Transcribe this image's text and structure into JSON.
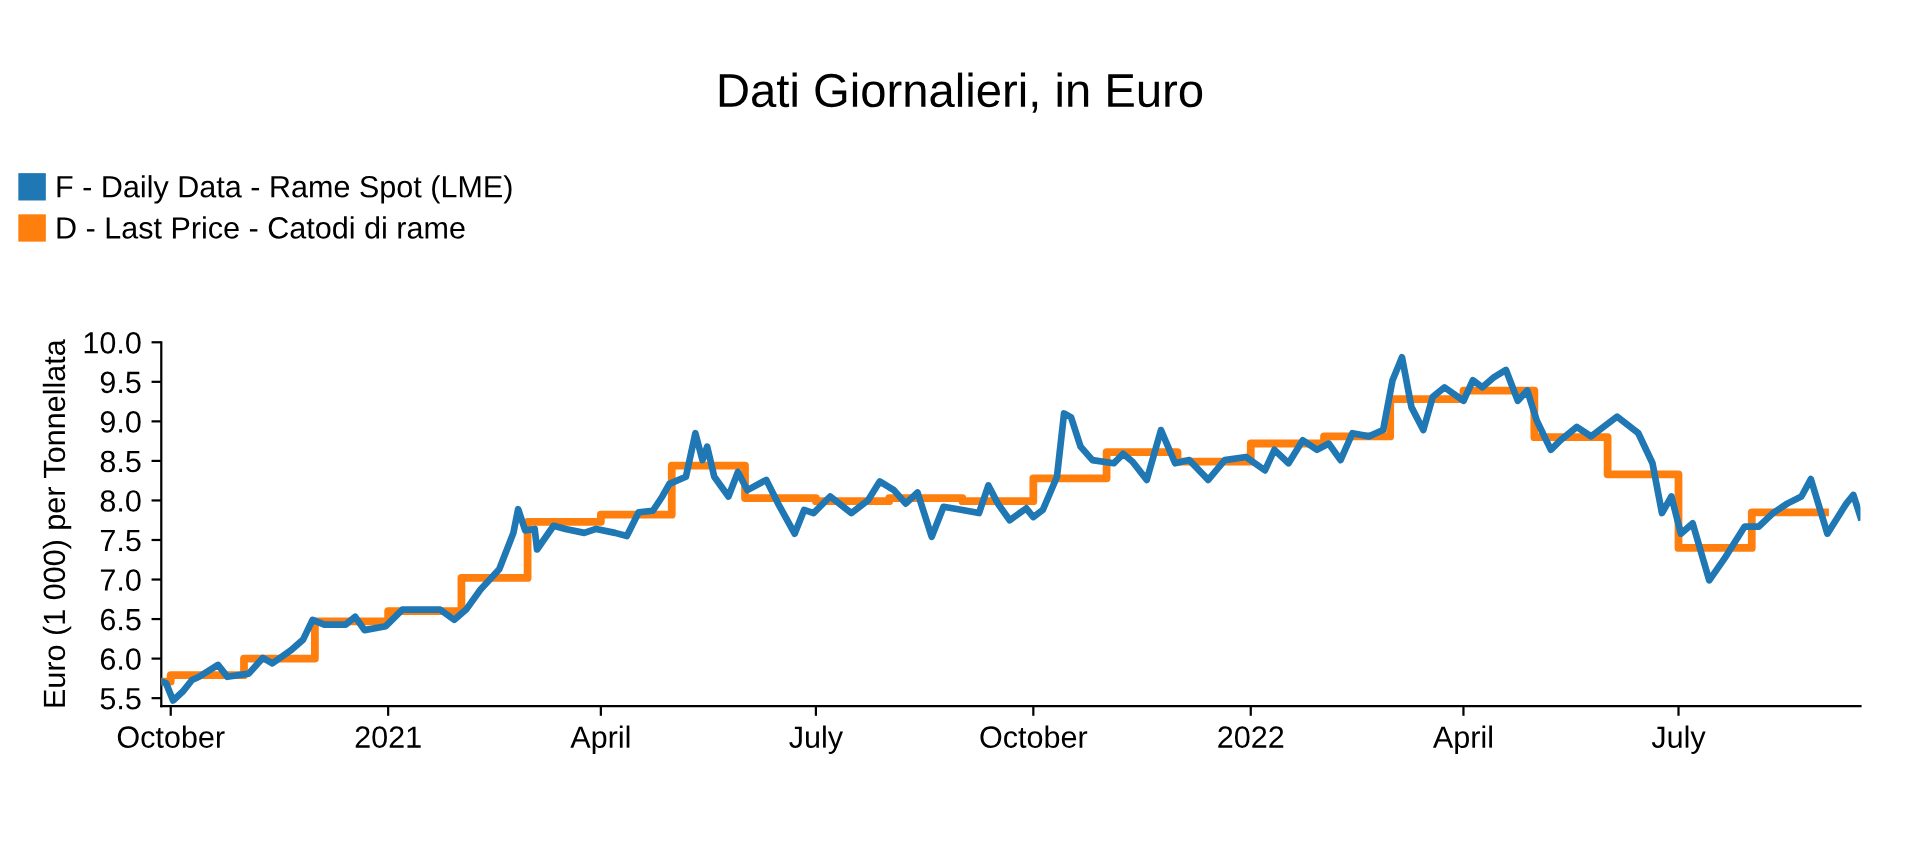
{
  "chart_data": {
    "type": "line",
    "title": "Dati Giornalieri, in Euro",
    "ylabel": "Euro (1 000) per Tonnellata",
    "xlim": [
      "2020-09-27",
      "2022-09-16"
    ],
    "ylim": [
      5.4,
      10.0
    ],
    "xticks": [
      {
        "value": "2020-10-01",
        "label": "October"
      },
      {
        "value": "2021-01-01",
        "label": "2021"
      },
      {
        "value": "2021-04-01",
        "label": "April"
      },
      {
        "value": "2021-07-01",
        "label": "July"
      },
      {
        "value": "2021-10-01",
        "label": "October"
      },
      {
        "value": "2022-01-01",
        "label": "2022"
      },
      {
        "value": "2022-04-01",
        "label": "April"
      },
      {
        "value": "2022-07-01",
        "label": "July"
      }
    ],
    "yticks": [
      5.5,
      {
        "value": 6,
        "label": "6.0"
      },
      6.5,
      {
        "value": 7,
        "label": "7.0"
      },
      7.5,
      {
        "value": 8,
        "label": "8.0"
      },
      8.5,
      {
        "value": 9,
        "label": "9.0"
      },
      9.5,
      {
        "value": 10,
        "label": "10.0"
      }
    ],
    "grid": false,
    "legend": "top left",
    "marker": "none",
    "line_style": "solid",
    "series": [
      {
        "name": "F - Daily Data - Rame Spot (LME)",
        "color": "#1f77b4",
        "x": [
          "2020-09-28",
          "2020-09-29",
          "2020-10-02",
          "2020-10-06",
          "2020-10-10",
          "2020-10-13",
          "2020-10-21",
          "2020-10-25",
          "2020-11-03",
          "2020-11-09",
          "2020-11-13",
          "2020-11-21",
          "2020-11-26",
          "2020-11-30",
          "2020-12-05",
          "2020-12-14",
          "2020-12-18",
          "2020-12-22",
          "2020-12-31",
          "2021-01-07",
          "2021-01-12",
          "2021-01-23",
          "2021-01-29",
          "2021-02-03",
          "2021-02-09",
          "2021-02-17",
          "2021-02-23",
          "2021-02-25",
          "2021-02-28",
          "2021-03-04",
          "2021-03-05",
          "2021-03-12",
          "2021-03-17",
          "2021-03-25",
          "2021-03-30",
          "2021-04-07",
          "2021-04-12",
          "2021-04-17",
          "2021-04-23",
          "2021-04-27",
          "2021-04-30",
          "2021-05-07",
          "2021-05-11",
          "2021-05-14",
          "2021-05-16",
          "2021-05-19",
          "2021-05-25",
          "2021-05-29",
          "2021-06-02",
          "2021-06-10",
          "2021-06-15",
          "2021-06-22",
          "2021-06-26",
          "2021-06-30",
          "2021-07-07",
          "2021-07-16",
          "2021-07-23",
          "2021-07-28",
          "2021-08-03",
          "2021-08-08",
          "2021-08-13",
          "2021-08-19",
          "2021-08-24",
          "2021-09-01",
          "2021-09-08",
          "2021-09-12",
          "2021-09-16",
          "2021-09-21",
          "2021-09-28",
          "2021-10-01",
          "2021-10-05",
          "2021-10-11",
          "2021-10-14",
          "2021-10-17",
          "2021-10-21",
          "2021-10-26",
          "2021-11-04",
          "2021-11-08",
          "2021-11-12",
          "2021-11-18",
          "2021-11-24",
          "2021-11-30",
          "2021-12-06",
          "2021-12-14",
          "2021-12-21",
          "2021-12-30",
          "2022-01-07",
          "2022-01-11",
          "2022-01-17",
          "2022-01-23",
          "2022-01-29",
          "2022-02-03",
          "2022-02-08",
          "2022-02-13",
          "2022-02-20",
          "2022-02-26",
          "2022-03-02",
          "2022-03-06",
          "2022-03-10",
          "2022-03-15",
          "2022-03-19",
          "2022-03-24",
          "2022-04-01",
          "2022-04-05",
          "2022-04-09",
          "2022-04-14",
          "2022-04-19",
          "2022-04-24",
          "2022-04-28",
          "2022-05-02",
          "2022-05-08",
          "2022-05-12",
          "2022-05-19",
          "2022-05-25",
          "2022-06-05",
          "2022-06-14",
          "2022-06-20",
          "2022-06-24",
          "2022-06-28",
          "2022-07-02",
          "2022-07-07",
          "2022-07-14",
          "2022-07-21",
          "2022-07-29",
          "2022-08-04",
          "2022-08-10",
          "2022-08-16",
          "2022-08-22",
          "2022-08-26",
          "2022-09-02",
          "2022-09-10",
          "2022-09-13",
          "2022-09-16"
        ],
        "values": [
          5.7,
          5.69,
          5.47,
          5.58,
          5.73,
          5.77,
          5.92,
          5.77,
          5.81,
          6.01,
          5.94,
          6.11,
          6.24,
          6.49,
          6.43,
          6.43,
          6.53,
          6.36,
          6.41,
          6.62,
          6.62,
          6.62,
          6.49,
          6.62,
          6.87,
          7.13,
          7.59,
          7.89,
          7.62,
          7.64,
          7.38,
          7.68,
          7.64,
          7.59,
          7.64,
          7.59,
          7.55,
          7.85,
          7.87,
          8.05,
          8.21,
          8.3,
          8.85,
          8.51,
          8.68,
          8.3,
          8.05,
          8.36,
          8.13,
          8.26,
          7.96,
          7.58,
          7.88,
          7.84,
          8.05,
          7.84,
          8.0,
          8.24,
          8.13,
          7.96,
          8.1,
          7.54,
          7.92,
          7.88,
          7.84,
          8.19,
          7.96,
          7.75,
          7.9,
          7.79,
          7.88,
          8.3,
          9.1,
          9.05,
          8.68,
          8.51,
          8.47,
          8.59,
          8.49,
          8.26,
          8.89,
          8.47,
          8.51,
          8.26,
          8.51,
          8.55,
          8.38,
          8.64,
          8.47,
          8.76,
          8.64,
          8.72,
          8.51,
          8.85,
          8.81,
          8.89,
          9.52,
          9.81,
          9.18,
          8.89,
          9.31,
          9.43,
          9.26,
          9.52,
          9.43,
          9.56,
          9.65,
          9.26,
          9.39,
          9.01,
          8.64,
          8.76,
          8.93,
          8.81,
          9.06,
          8.85,
          8.47,
          7.84,
          8.05,
          7.58,
          7.71,
          6.99,
          7.29,
          7.67,
          7.67,
          7.84,
          7.96,
          8.05,
          8.27,
          7.58,
          7.96,
          8.07,
          7.79
        ]
      },
      {
        "name": "D - Last Price - Catodi di rame",
        "type": "step",
        "color": "#ff7f0e",
        "x": [
          "2020-09-28",
          "2020-10-01",
          "2020-11-01",
          "2020-12-01",
          "2021-01-01",
          "2021-02-01",
          "2021-03-01",
          "2021-04-01",
          "2021-05-01",
          "2021-06-01",
          "2021-07-01",
          "2021-08-01",
          "2021-09-01",
          "2021-10-01",
          "2021-11-01",
          "2021-12-01",
          "2022-01-01",
          "2022-02-01",
          "2022-03-01",
          "2022-04-01",
          "2022-05-01",
          "2022-06-01",
          "2022-07-01",
          "2022-08-01",
          "2022-09-01"
        ],
        "values": [
          5.71,
          5.79,
          6.0,
          6.47,
          6.6,
          7.02,
          7.73,
          7.82,
          8.44,
          8.03,
          7.99,
          8.03,
          7.99,
          8.28,
          8.61,
          8.49,
          8.72,
          8.81,
          9.28,
          9.39,
          8.8,
          8.33,
          7.4,
          7.85,
          7.85
        ]
      }
    ]
  }
}
